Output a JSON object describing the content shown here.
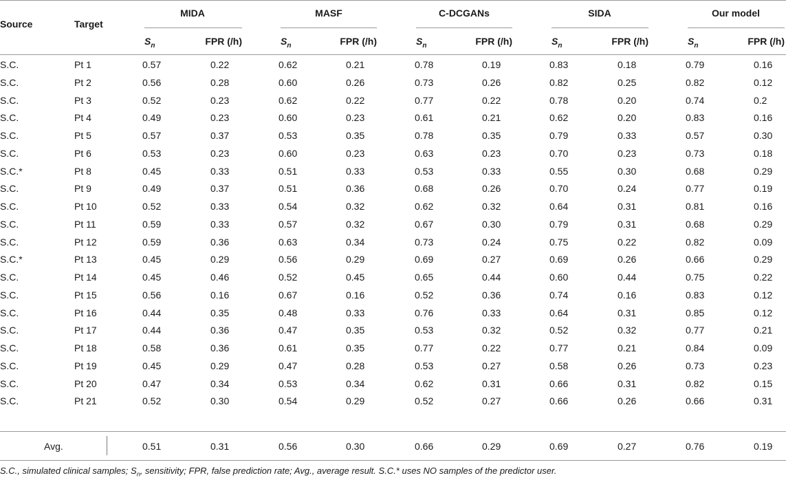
{
  "table": {
    "headers": {
      "source": "Source",
      "target": "Target",
      "groups": [
        "MIDA",
        "MASF",
        "C-DCGANs",
        "SIDA",
        "Our model"
      ],
      "sub_sn_base": "S",
      "sub_sn_sub": "n",
      "sub_fpr": "FPR (/h)"
    },
    "rows": [
      [
        "S.C.",
        "Pt 1",
        "0.57",
        "0.22",
        "0.62",
        "0.21",
        "0.78",
        "0.19",
        "0.83",
        "0.18",
        "0.79",
        "0.16"
      ],
      [
        "S.C.",
        "Pt 2",
        "0.56",
        "0.28",
        "0.60",
        "0.26",
        "0.73",
        "0.26",
        "0.82",
        "0.25",
        "0.82",
        "0.12"
      ],
      [
        "S.C.",
        "Pt 3",
        "0.52",
        "0.23",
        "0.62",
        "0.22",
        "0.77",
        "0.22",
        "0.78",
        "0.20",
        "0.74",
        "0.2"
      ],
      [
        "S.C.",
        "Pt 4",
        "0.49",
        "0.23",
        "0.60",
        "0.23",
        "0.61",
        "0.21",
        "0.62",
        "0.20",
        "0.83",
        "0.16"
      ],
      [
        "S.C.",
        "Pt 5",
        "0.57",
        "0.37",
        "0.53",
        "0.35",
        "0.78",
        "0.35",
        "0.79",
        "0.33",
        "0.57",
        "0.30"
      ],
      [
        "S.C.",
        "Pt 6",
        "0.53",
        "0.23",
        "0.60",
        "0.23",
        "0.63",
        "0.23",
        "0.70",
        "0.23",
        "0.73",
        "0.18"
      ],
      [
        "S.C.*",
        "Pt 8",
        "0.45",
        "0.33",
        "0.51",
        "0.33",
        "0.53",
        "0.33",
        "0.55",
        "0.30",
        "0.68",
        "0.29"
      ],
      [
        "S.C.",
        "Pt 9",
        "0.49",
        "0.37",
        "0.51",
        "0.36",
        "0.68",
        "0.26",
        "0.70",
        "0.24",
        "0.77",
        "0.19"
      ],
      [
        "S.C.",
        "Pt 10",
        "0.52",
        "0.33",
        "0.54",
        "0.32",
        "0.62",
        "0.32",
        "0.64",
        "0.31",
        "0.81",
        "0.16"
      ],
      [
        "S.C.",
        "Pt 11",
        "0.59",
        "0.33",
        "0.57",
        "0.32",
        "0.67",
        "0.30",
        "0.79",
        "0.31",
        "0.68",
        "0.29"
      ],
      [
        "S.C.",
        "Pt 12",
        "0.59",
        "0.36",
        "0.63",
        "0.34",
        "0.73",
        "0.24",
        "0.75",
        "0.22",
        "0.82",
        "0.09"
      ],
      [
        "S.C.*",
        "Pt 13",
        "0.45",
        "0.29",
        "0.56",
        "0.29",
        "0.69",
        "0.27",
        "0.69",
        "0.26",
        "0.66",
        "0.29"
      ],
      [
        "S.C.",
        "Pt 14",
        "0.45",
        "0.46",
        "0.52",
        "0.45",
        "0.65",
        "0.44",
        "0.60",
        "0.44",
        "0.75",
        "0.22"
      ],
      [
        "S.C.",
        "Pt 15",
        "0.56",
        "0.16",
        "0.67",
        "0.16",
        "0.52",
        "0.36",
        "0.74",
        "0.16",
        "0.83",
        "0.12"
      ],
      [
        "S.C.",
        "Pt 16",
        "0.44",
        "0.35",
        "0.48",
        "0.33",
        "0.76",
        "0.33",
        "0.64",
        "0.31",
        "0.85",
        "0.12"
      ],
      [
        "S.C.",
        "Pt 17",
        "0.44",
        "0.36",
        "0.47",
        "0.35",
        "0.53",
        "0.32",
        "0.52",
        "0.32",
        "0.77",
        "0.21"
      ],
      [
        "S.C.",
        "Pt 18",
        "0.58",
        "0.36",
        "0.61",
        "0.35",
        "0.77",
        "0.22",
        "0.77",
        "0.21",
        "0.84",
        "0.09"
      ],
      [
        "S.C.",
        "Pt 19",
        "0.45",
        "0.29",
        "0.47",
        "0.28",
        "0.53",
        "0.27",
        "0.58",
        "0.26",
        "0.73",
        "0.23"
      ],
      [
        "S.C.",
        "Pt 20",
        "0.47",
        "0.34",
        "0.53",
        "0.34",
        "0.62",
        "0.31",
        "0.66",
        "0.31",
        "0.82",
        "0.15"
      ],
      [
        "S.C.",
        "Pt 21",
        "0.52",
        "0.30",
        "0.54",
        "0.29",
        "0.52",
        "0.27",
        "0.66",
        "0.26",
        "0.66",
        "0.31"
      ]
    ],
    "avg": {
      "label": "Avg.",
      "values": [
        "0.51",
        "0.31",
        "0.56",
        "0.30",
        "0.66",
        "0.29",
        "0.69",
        "0.27",
        "0.76",
        "0.19"
      ]
    }
  },
  "footnote": {
    "p1": "S.C., simulated clinical samples; ",
    "sn_base": "S",
    "sn_sub": "n",
    "p2": ", sensitivity; FPR, false prediction rate; Avg., average result. S.C.* uses NO samples of the predictor user."
  }
}
